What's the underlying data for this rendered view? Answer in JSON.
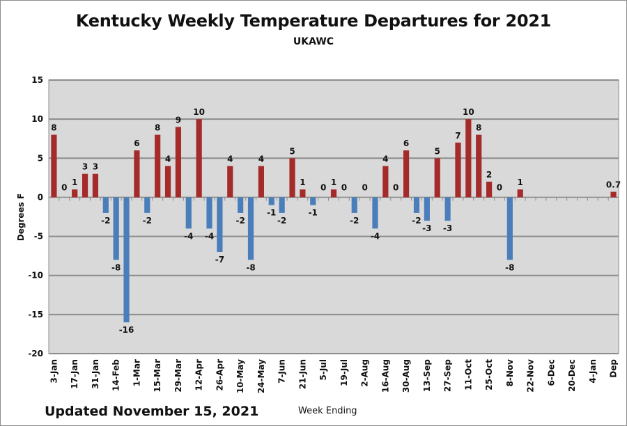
{
  "chart_data": {
    "type": "bar",
    "title": "Kentucky Weekly Temperature Departures for 2021",
    "subtitle": "UKAWC",
    "xlabel": "Week Ending",
    "ylabel": "Degrees F",
    "footnote": "Updated November 15, 2021",
    "ylim": [
      -20,
      15
    ],
    "yticks": [
      15,
      10,
      5,
      0,
      -5,
      -10,
      -15,
      -20
    ],
    "grid": true,
    "x_tick_labels": [
      "3-Jan",
      "17-Jan",
      "31-Jan",
      "14-Feb",
      "1-Mar",
      "15-Mar",
      "29-Mar",
      "12-Apr",
      "26-Apr",
      "10-May",
      "24-May",
      "7-Jun",
      "21-Jun",
      "5-Jul",
      "19-Jul",
      "2-Aug",
      "16-Aug",
      "30-Aug",
      "13-Sep",
      "27-Sep",
      "11-Oct",
      "25-Oct",
      "8-Nov",
      "22-Nov",
      "6-Dec",
      "20-Dec",
      "4-Jan",
      "Dep"
    ],
    "positive_color": "#a52a2a",
    "negative_color": "#4a7ebb",
    "values": [
      8,
      0,
      1,
      3,
      3,
      -2,
      -8,
      -16,
      6,
      -2,
      8,
      4,
      9,
      -4,
      10,
      -4,
      -7,
      4,
      -2,
      -8,
      4,
      -1,
      -2,
      5,
      1,
      -1,
      0,
      1,
      0,
      -2,
      0,
      -4,
      4,
      0,
      6,
      -2,
      -3,
      5,
      -3,
      7,
      10,
      8,
      2,
      0,
      -8,
      1,
      null,
      null,
      null,
      null,
      null,
      null,
      null,
      null,
      0.7
    ],
    "data_labels": [
      "8",
      "0",
      "1",
      "3",
      "3",
      "-2",
      "-8",
      "-16",
      "6",
      "-2",
      "8",
      "4",
      "9",
      "-4",
      "10",
      "-4",
      "-7",
      "4",
      "-2",
      "-8",
      "4",
      "-1",
      "-2",
      "5",
      "1",
      "-1",
      "0",
      "1",
      "0",
      "-2",
      "0",
      "-4",
      "4",
      "0",
      "6",
      "-2",
      "-3",
      "5",
      "-3",
      "7",
      "10",
      "8",
      "2",
      "0",
      "-8",
      "1",
      "",
      "",
      "",
      "",
      "",
      "",
      "",
      "",
      "0.7"
    ]
  }
}
